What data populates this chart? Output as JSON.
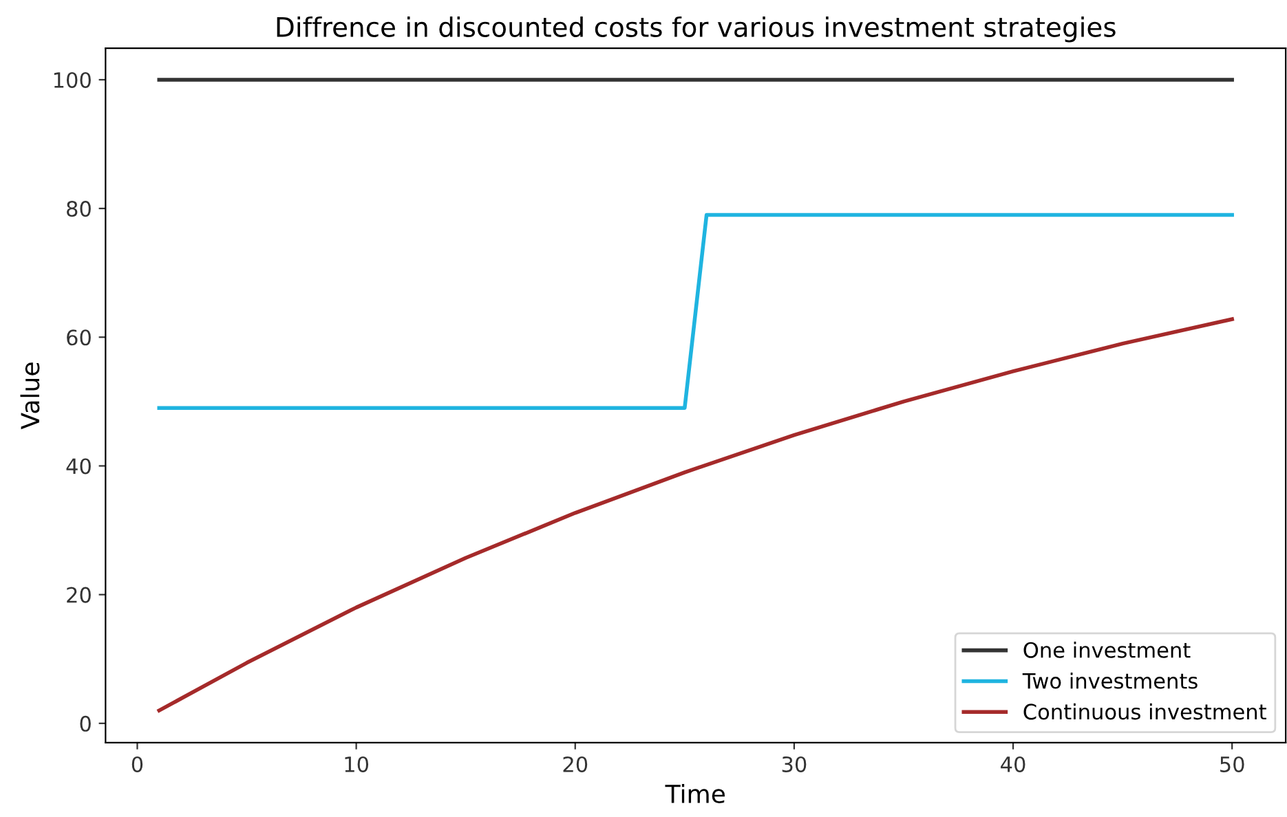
{
  "chart_data": {
    "type": "line",
    "title": "Diffrence in discounted costs for various investment strategies",
    "xlabel": "Time",
    "ylabel": "Value",
    "series": [
      {
        "name": "One investment",
        "color": "#333333",
        "x": [
          1,
          50
        ],
        "values": [
          100,
          100
        ]
      },
      {
        "name": "Two investments",
        "color": "#1fb4e0",
        "x": [
          1,
          25,
          26,
          50
        ],
        "values": [
          49,
          49,
          79,
          79
        ]
      },
      {
        "name": "Continuous investment",
        "color": "#a52a2a",
        "x": [
          1,
          5,
          10,
          15,
          20,
          25,
          30,
          35,
          40,
          45,
          50
        ],
        "values": [
          2,
          9.4,
          18,
          25.7,
          32.7,
          39,
          44.8,
          50,
          54.7,
          59,
          62.8
        ]
      }
    ],
    "xlim": [
      -1.45,
      52.45
    ],
    "xticks": [
      0,
      10,
      20,
      30,
      40,
      50
    ],
    "ylim": [
      -3,
      104.9
    ],
    "yticks": [
      0,
      20,
      40,
      60,
      80,
      100
    ],
    "grid": false,
    "legend": "bottom right",
    "marker": "none",
    "line_style": "solid"
  }
}
